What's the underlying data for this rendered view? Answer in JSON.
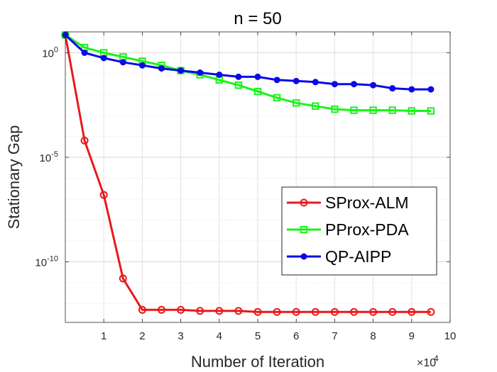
{
  "chart_data": {
    "type": "line",
    "title": "n = 50",
    "xlabel": "Number of Iteration",
    "ylabel": "Stationary Gap",
    "x_multiplier": "×10",
    "x_multiplier_exp": "4",
    "xlim": [
      0,
      10
    ],
    "ylim_log10": [
      -12.9,
      1.0
    ],
    "y_scale": "log",
    "grid": true,
    "legend_position": "bottom-right",
    "x_ticks": [
      {
        "value": 1,
        "label": "1"
      },
      {
        "value": 2,
        "label": "2"
      },
      {
        "value": 3,
        "label": "3"
      },
      {
        "value": 4,
        "label": "4"
      },
      {
        "value": 5,
        "label": "5"
      },
      {
        "value": 6,
        "label": "6"
      },
      {
        "value": 7,
        "label": "7"
      },
      {
        "value": 8,
        "label": "8"
      },
      {
        "value": 9,
        "label": "9"
      },
      {
        "value": 10,
        "label": "10"
      }
    ],
    "y_ticks": [
      {
        "exp": 0,
        "base": "10",
        "sup": "0"
      },
      {
        "exp": -5,
        "base": "10",
        "sup": "-5"
      },
      {
        "exp": -10,
        "base": "10",
        "sup": "-10"
      }
    ],
    "x": [
      0,
      0.5,
      1,
      1.5,
      2,
      2.5,
      3,
      3.5,
      4,
      4.5,
      5,
      5.5,
      6,
      6.5,
      7,
      7.5,
      8,
      8.5,
      9,
      9.5
    ],
    "series": [
      {
        "name": "SProx-ALM",
        "color": "#e8191b",
        "marker": "circle",
        "log10_values": [
          0.85,
          -4.2,
          -6.8,
          -10.8,
          -12.3,
          -12.3,
          -12.3,
          -12.35,
          -12.35,
          -12.35,
          -12.4,
          -12.4,
          -12.4,
          -12.4,
          -12.4,
          -12.4,
          -12.4,
          -12.4,
          -12.4,
          -12.4
        ]
      },
      {
        "name": "PProx-PDA",
        "color": "#18f318",
        "marker": "square",
        "log10_values": [
          0.85,
          0.25,
          0.0,
          -0.2,
          -0.4,
          -0.6,
          -0.85,
          -1.05,
          -1.3,
          -1.55,
          -1.85,
          -2.15,
          -2.4,
          -2.55,
          -2.7,
          -2.75,
          -2.75,
          -2.75,
          -2.78,
          -2.78
        ]
      },
      {
        "name": "QP-AIPP",
        "color": "#0a0ae6",
        "marker": "dot",
        "log10_values": [
          0.85,
          0.0,
          -0.25,
          -0.45,
          -0.6,
          -0.75,
          -0.85,
          -0.95,
          -1.05,
          -1.15,
          -1.15,
          -1.3,
          -1.35,
          -1.4,
          -1.5,
          -1.5,
          -1.55,
          -1.7,
          -1.75,
          -1.75
        ]
      }
    ]
  }
}
